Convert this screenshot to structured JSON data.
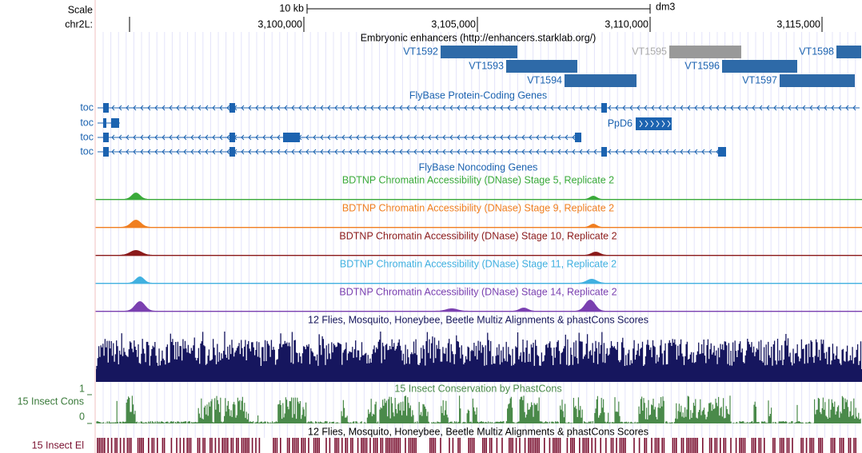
{
  "ruler": {
    "scale_label": "Scale",
    "scale_text": "10 kb",
    "assembly": "dm3",
    "chrom_label": "chr2L:",
    "positions": [
      "3,100,000",
      "3,105,000",
      "3,110,000",
      "3,115,000"
    ]
  },
  "enhancer_track": {
    "title": "Embryonic enhancers (http://enhancers.starklab.org/)",
    "items": [
      "VT1592",
      "VT1593",
      "VT1594",
      "VT1595",
      "VT1596",
      "VT1597",
      "VT1598"
    ]
  },
  "gene_track": {
    "title": "FlyBase Protein-Coding Genes",
    "genes": [
      "toc",
      "toc",
      "toc",
      "toc"
    ],
    "other_gene": "PpD6"
  },
  "noncoding_track": {
    "title": "FlyBase Noncoding Genes"
  },
  "dnase_tracks": [
    "BDTNP Chromatin Accessibility (DNase) Stage 5, Replicate 2",
    "BDTNP Chromatin Accessibility (DNase) Stage 9, Replicate 2",
    "BDTNP Chromatin Accessibility (DNase) Stage 10, Replicate 2",
    "BDTNP Chromatin Accessibility (DNase) Stage 11, Replicate 2",
    "BDTNP Chromatin Accessibility (DNase) Stage 14, Replicate 2"
  ],
  "multiz_track": {
    "title": "12 Flies, Mosquito, Honeybee, Beetle Multiz Alignments & phastCons Scores"
  },
  "cons_track": {
    "title": "15 Insect Conservation by PhastCons",
    "side_label": "15 Insect Cons",
    "axis_top": "1",
    "axis_bottom": "0"
  },
  "elements_track": {
    "title": "12 Flies, Mosquito, Honeybee, Beetle Multiz Alignments & phastCons Scores",
    "side_label": "15 Insect El"
  }
}
